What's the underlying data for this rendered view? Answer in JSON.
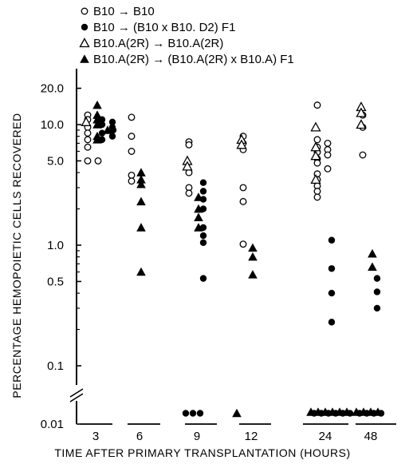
{
  "chart_data": {
    "type": "scatter",
    "title": "",
    "xlabel": "TIME AFTER PRIMARY TRANSPLANTATION (HOURS)",
    "ylabel": "PERCENTAGE HEMOPOIETIC CELLS RECOVERED",
    "y_scale": "log",
    "ylim": [
      0.01,
      20.0
    ],
    "y_axis_break": "between 0.01 and 0.1",
    "grid": false,
    "legend_position": "top-left",
    "x_categories": [
      "3",
      "6",
      "9",
      "12",
      "24",
      "48"
    ],
    "y_ticks": [
      "20.0",
      "10.0",
      "5.0",
      "1.0",
      "0.5",
      "0.1",
      "0.01"
    ],
    "legend": [
      {
        "label": "B10 → B10",
        "marker": "open-circle"
      },
      {
        "label": "B10 → (B10 x B10. D2) F1",
        "marker": "filled-circle"
      },
      {
        "label": "B10.A(2R) → B10.A(2R)",
        "marker": "open-triangle"
      },
      {
        "label": "B10.A(2R) → (B10.A(2R) x B10.A) F1",
        "marker": "filled-triangle"
      }
    ],
    "series": [
      {
        "name": "B10 → B10",
        "marker": "open-circle",
        "points": [
          {
            "x": "3",
            "y": 12
          },
          {
            "x": "3",
            "y": 11
          },
          {
            "x": "3",
            "y": 9.5
          },
          {
            "x": "3",
            "y": 8.5
          },
          {
            "x": "3",
            "y": 7.5
          },
          {
            "x": "3",
            "y": 6.5
          },
          {
            "x": "3",
            "y": 5
          },
          {
            "x": "3",
            "y": 5
          },
          {
            "x": "6",
            "y": 11.5
          },
          {
            "x": "6",
            "y": 8
          },
          {
            "x": "6",
            "y": 6
          },
          {
            "x": "6",
            "y": 3.8
          },
          {
            "x": "6",
            "y": 3.4
          },
          {
            "x": "9",
            "y": 7.2
          },
          {
            "x": "9",
            "y": 6.8
          },
          {
            "x": "9",
            "y": 4
          },
          {
            "x": "9",
            "y": 3
          },
          {
            "x": "9",
            "y": 2.7
          },
          {
            "x": "12",
            "y": 8
          },
          {
            "x": "12",
            "y": 7
          },
          {
            "x": "12",
            "y": 6.2
          },
          {
            "x": "12",
            "y": 3
          },
          {
            "x": "12",
            "y": 2.3
          },
          {
            "x": "12",
            "y": 1.02
          },
          {
            "x": "24",
            "y": 14.5
          },
          {
            "x": "24",
            "y": 7.5
          },
          {
            "x": "24",
            "y": 7
          },
          {
            "x": "24",
            "y": 6.5
          },
          {
            "x": "24",
            "y": 6.2
          },
          {
            "x": "24",
            "y": 5.9
          },
          {
            "x": "24",
            "y": 5.6
          },
          {
            "x": "24",
            "y": 5.2
          },
          {
            "x": "24",
            "y": 4.8
          },
          {
            "x": "24",
            "y": 4.3
          },
          {
            "x": "24",
            "y": 3.9
          },
          {
            "x": "24",
            "y": 3.5
          },
          {
            "x": "24",
            "y": 3.1
          },
          {
            "x": "24",
            "y": 2.8
          },
          {
            "x": "24",
            "y": 2.5
          },
          {
            "x": "48",
            "y": 12
          },
          {
            "x": "48",
            "y": 9.5
          },
          {
            "x": "48",
            "y": 5.6
          }
        ]
      },
      {
        "name": "B10 → (B10 x B10. D2) F1",
        "marker": "filled-circle",
        "points": [
          {
            "x": "3",
            "y": 11
          },
          {
            "x": "3",
            "y": 10.5
          },
          {
            "x": "3",
            "y": 10
          },
          {
            "x": "3",
            "y": 9.5
          },
          {
            "x": "3",
            "y": 9
          },
          {
            "x": "3",
            "y": 8.5
          },
          {
            "x": "3",
            "y": 8
          },
          {
            "x": "3",
            "y": 7.5
          },
          {
            "x": "9",
            "y": 3.3
          },
          {
            "x": "9",
            "y": 2.8
          },
          {
            "x": "9",
            "y": 2.4
          },
          {
            "x": "9",
            "y": 2
          },
          {
            "x": "9",
            "y": 1.4
          },
          {
            "x": "9",
            "y": 1.2
          },
          {
            "x": "9",
            "y": 1.05
          },
          {
            "x": "9",
            "y": 0.53
          },
          {
            "x": "9",
            "y": 0.011
          },
          {
            "x": "9",
            "y": 0.011
          },
          {
            "x": "9",
            "y": 0.011
          },
          {
            "x": "24",
            "y": 1.1
          },
          {
            "x": "24",
            "y": 0.64
          },
          {
            "x": "24",
            "y": 0.4
          },
          {
            "x": "24",
            "y": 0.23
          },
          {
            "x": "24",
            "y": 0.011
          },
          {
            "x": "24",
            "y": 0.011
          },
          {
            "x": "24",
            "y": 0.011
          },
          {
            "x": "24",
            "y": 0.011
          },
          {
            "x": "24",
            "y": 0.011
          },
          {
            "x": "24",
            "y": 0.011
          },
          {
            "x": "48",
            "y": 0.53
          },
          {
            "x": "48",
            "y": 0.41
          },
          {
            "x": "48",
            "y": 0.3
          },
          {
            "x": "48",
            "y": 0.011
          },
          {
            "x": "48",
            "y": 0.011
          },
          {
            "x": "48",
            "y": 0.011
          },
          {
            "x": "48",
            "y": 0.011
          }
        ]
      },
      {
        "name": "B10.A(2R) → B10.A(2R)",
        "marker": "open-triangle",
        "points": [
          {
            "x": "3",
            "y": 10.5
          },
          {
            "x": "9",
            "y": 5
          },
          {
            "x": "9",
            "y": 4.5
          },
          {
            "x": "12",
            "y": 7.5
          },
          {
            "x": "12",
            "y": 6.8
          },
          {
            "x": "24",
            "y": 9.5
          },
          {
            "x": "24",
            "y": 6.5
          },
          {
            "x": "24",
            "y": 5.5
          },
          {
            "x": "24",
            "y": 3.5
          },
          {
            "x": "48",
            "y": 14
          },
          {
            "x": "48",
            "y": 12.5
          },
          {
            "x": "48",
            "y": 10
          }
        ]
      },
      {
        "name": "B10.A(2R) → (B10.A(2R) x B10.A) F1",
        "marker": "filled-triangle",
        "points": [
          {
            "x": "3",
            "y": 14.5
          },
          {
            "x": "3",
            "y": 12
          },
          {
            "x": "3",
            "y": 11
          },
          {
            "x": "3",
            "y": 10
          },
          {
            "x": "3",
            "y": 9
          },
          {
            "x": "3",
            "y": 8
          },
          {
            "x": "3",
            "y": 7.5
          },
          {
            "x": "6",
            "y": 4
          },
          {
            "x": "6",
            "y": 3.5
          },
          {
            "x": "6",
            "y": 3.2
          },
          {
            "x": "6",
            "y": 2.3
          },
          {
            "x": "6",
            "y": 1.4
          },
          {
            "x": "6",
            "y": 0.6
          },
          {
            "x": "9",
            "y": 2.5
          },
          {
            "x": "9",
            "y": 2
          },
          {
            "x": "9",
            "y": 1.7
          },
          {
            "x": "9",
            "y": 1.4
          },
          {
            "x": "12",
            "y": 0.95
          },
          {
            "x": "12",
            "y": 0.8
          },
          {
            "x": "12",
            "y": 0.57
          },
          {
            "x": "12",
            "y": 0.011
          },
          {
            "x": "24",
            "y": 0.012
          },
          {
            "x": "24",
            "y": 0.012
          },
          {
            "x": "24",
            "y": 0.012
          },
          {
            "x": "24",
            "y": 0.012
          },
          {
            "x": "24",
            "y": 0.012
          },
          {
            "x": "24",
            "y": 0.012
          },
          {
            "x": "48",
            "y": 0.85
          },
          {
            "x": "48",
            "y": 0.66
          },
          {
            "x": "48",
            "y": 0.012
          },
          {
            "x": "48",
            "y": 0.012
          },
          {
            "x": "48",
            "y": 0.012
          },
          {
            "x": "48",
            "y": 0.012
          }
        ]
      }
    ]
  }
}
